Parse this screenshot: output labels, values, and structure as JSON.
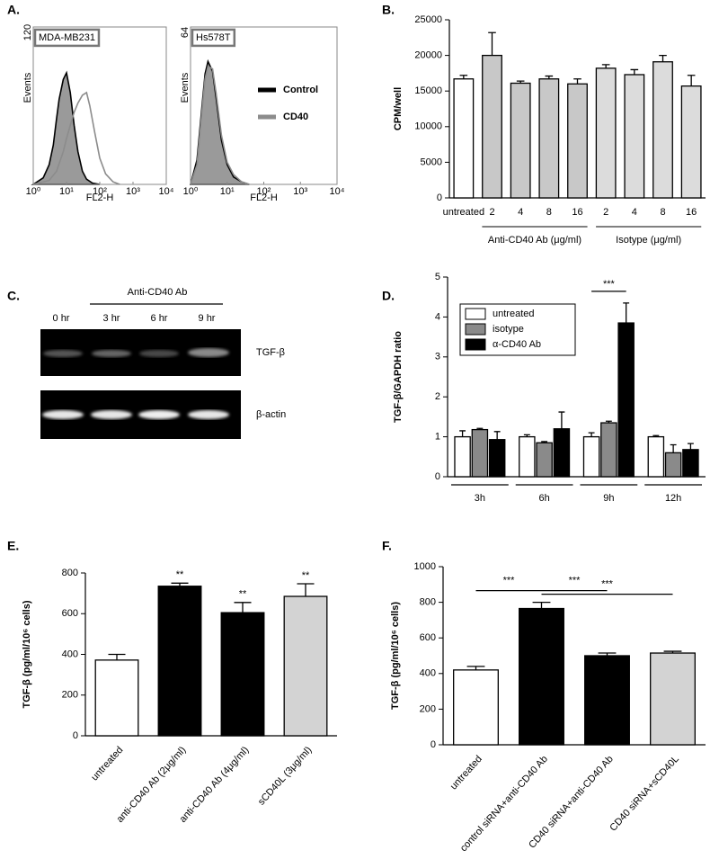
{
  "chart_data": [
    {
      "type": "flow",
      "panel": "A.",
      "title": "MDA-MB231",
      "xlabel": "FL2-H",
      "ylabel": "Events",
      "xscale": "log",
      "xlim": [
        1,
        10000
      ],
      "xticks": [
        {
          "value": 1,
          "label": "10⁰"
        },
        {
          "value": 10,
          "label": "10¹"
        },
        {
          "value": 100,
          "label": "10²"
        },
        {
          "value": 1000,
          "label": "10³"
        },
        {
          "value": 10000,
          "label": "10⁴"
        }
      ],
      "ylim": [
        0,
        120
      ],
      "yticks": [
        120
      ],
      "series": [
        {
          "color": "#000000",
          "fill": "#9a9a9a",
          "x": [
            1,
            2,
            3,
            4,
            5,
            6,
            8,
            10,
            13,
            17,
            22,
            30,
            40,
            60,
            100
          ],
          "values": [
            0,
            5,
            15,
            30,
            50,
            65,
            80,
            85,
            70,
            45,
            25,
            10,
            4,
            1,
            0
          ]
        },
        {
          "color": "#8c8c8c",
          "x": [
            1,
            3,
            5,
            8,
            10,
            13,
            17,
            22,
            30,
            40,
            50,
            70,
            100,
            150,
            250,
            400
          ],
          "values": [
            0,
            3,
            10,
            25,
            35,
            45,
            55,
            62,
            68,
            70,
            60,
            40,
            20,
            8,
            2,
            0
          ]
        }
      ]
    },
    {
      "type": "flow",
      "title": "Hs578T",
      "xlabel": "FL2-H",
      "ylabel": "Events",
      "xscale": "log",
      "xlim": [
        1,
        10000
      ],
      "xticks": [
        {
          "value": 1,
          "label": "10⁰"
        },
        {
          "value": 10,
          "label": "10¹"
        },
        {
          "value": 100,
          "label": "10²"
        },
        {
          "value": 1000,
          "label": "10³"
        },
        {
          "value": 10000,
          "label": "10⁴"
        }
      ],
      "ylim": [
        0,
        64
      ],
      "yticks": [
        64
      ],
      "legend": "right",
      "series": [
        {
          "name": "Control",
          "color": "#000000",
          "fill": "#9a9a9a",
          "x": [
            1,
            1.5,
            2,
            2.5,
            3,
            4,
            5,
            7,
            10,
            15,
            25,
            40
          ],
          "values": [
            0,
            10,
            30,
            45,
            50,
            46,
            35,
            18,
            8,
            3,
            1,
            0
          ]
        },
        {
          "name": "CD40",
          "color": "#8c8c8c",
          "x": [
            1,
            1.5,
            2,
            2.5,
            3,
            4,
            5,
            7,
            10,
            15,
            25,
            40
          ],
          "values": [
            0,
            8,
            28,
            43,
            48,
            47,
            37,
            20,
            9,
            4,
            1,
            0
          ]
        }
      ]
    },
    {
      "type": "bar",
      "panel": "B.",
      "ylabel": "CPM/well",
      "categories": [
        "untreated",
        "2",
        "4",
        "8",
        "16",
        "2",
        "4",
        "8",
        "16"
      ],
      "values": [
        16700,
        20000,
        16100,
        16700,
        16000,
        18200,
        17300,
        19100,
        15700
      ],
      "errors": [
        500,
        3200,
        300,
        400,
        700,
        500,
        700,
        900,
        1500
      ],
      "colors": [
        "#ffffff",
        "#c8c8c8",
        "#c8c8c8",
        "#c8c8c8",
        "#c8c8c8",
        "#dcdcdc",
        "#dcdcdc",
        "#dcdcdc",
        "#dcdcdc"
      ],
      "ylim": [
        0,
        25000
      ],
      "yticks": [
        0,
        5000,
        10000,
        15000,
        20000,
        25000
      ],
      "groups": [
        {
          "label": "Anti-CD40 Ab (μg/ml)",
          "start": 1,
          "end": 4
        },
        {
          "label": "Isotype (μg/ml)",
          "start": 5,
          "end": 8
        }
      ]
    },
    {
      "type": "grouped_bar",
      "panel": "D.",
      "ylabel": "TGF-β/GAPDH ratio",
      "categories": [
        "3h",
        "6h",
        "9h",
        "12h"
      ],
      "series": [
        {
          "name": "untreated",
          "color": "#ffffff",
          "values": [
            1.0,
            1.0,
            1.0,
            1.0
          ],
          "errors": [
            0.15,
            0.05,
            0.1,
            0.03
          ]
        },
        {
          "name": "isotype",
          "color": "#8a8a8a",
          "values": [
            1.18,
            0.85,
            1.35,
            0.6
          ],
          "errors": [
            0.03,
            0.03,
            0.04,
            0.2
          ]
        },
        {
          "name": "α-CD40 Ab",
          "color": "#000000",
          "values": [
            0.93,
            1.2,
            3.85,
            0.68
          ],
          "errors": [
            0.2,
            0.42,
            0.5,
            0.15
          ]
        }
      ],
      "ylim": [
        0,
        5
      ],
      "yticks": [
        0,
        1,
        2,
        3,
        4,
        5
      ],
      "legend": "upper left",
      "annotations": [
        {
          "index": 2,
          "text": "***"
        }
      ]
    },
    {
      "type": "bar",
      "panel": "E.",
      "ylabel": "TGF-β (pg/ml/10⁶ cells)",
      "categories": [
        "untreated",
        "anti-CD40 Ab (2μg/ml)",
        "anti-CD40 Ab (4μg/ml)",
        "sCD40L (3μg/ml)"
      ],
      "values": [
        372,
        735,
        605,
        685
      ],
      "errors": [
        28,
        15,
        50,
        62
      ],
      "colors": [
        "#ffffff",
        "#000000",
        "#000000",
        "#d3d3d3"
      ],
      "ylim": [
        0,
        800
      ],
      "yticks": [
        0,
        200,
        400,
        600,
        800
      ],
      "annotations": [
        null,
        "**",
        "**",
        "**"
      ]
    },
    {
      "type": "bar",
      "panel": "F.",
      "ylabel": "TGF-β (pg/ml/10⁶ cells)",
      "categories": [
        "untreated",
        "control siRNA+anti-CD40 Ab",
        "CD40 siRNA+anti-CD40 Ab",
        "CD40 siRNA+sCD40L"
      ],
      "values": [
        420,
        765,
        500,
        515
      ],
      "errors": [
        20,
        35,
        15,
        10
      ],
      "colors": [
        "#ffffff",
        "#000000",
        "#000000",
        "#d3d3d3"
      ],
      "ylim": [
        0,
        1000
      ],
      "yticks": [
        0,
        200,
        400,
        600,
        800,
        1000
      ],
      "brackets": [
        {
          "from": 0,
          "to": 1,
          "text": "***"
        },
        {
          "from": 1,
          "to": 2,
          "text": "***"
        },
        {
          "from": 1,
          "to": 3,
          "text": "***"
        }
      ]
    }
  ],
  "gel": {
    "panel": "C.",
    "treatment": "Anti-CD40 Ab",
    "lanes": [
      "0 hr",
      "3 hr",
      "6 hr",
      "9 hr"
    ],
    "bands": [
      "TGF-β",
      "β-actin"
    ]
  }
}
